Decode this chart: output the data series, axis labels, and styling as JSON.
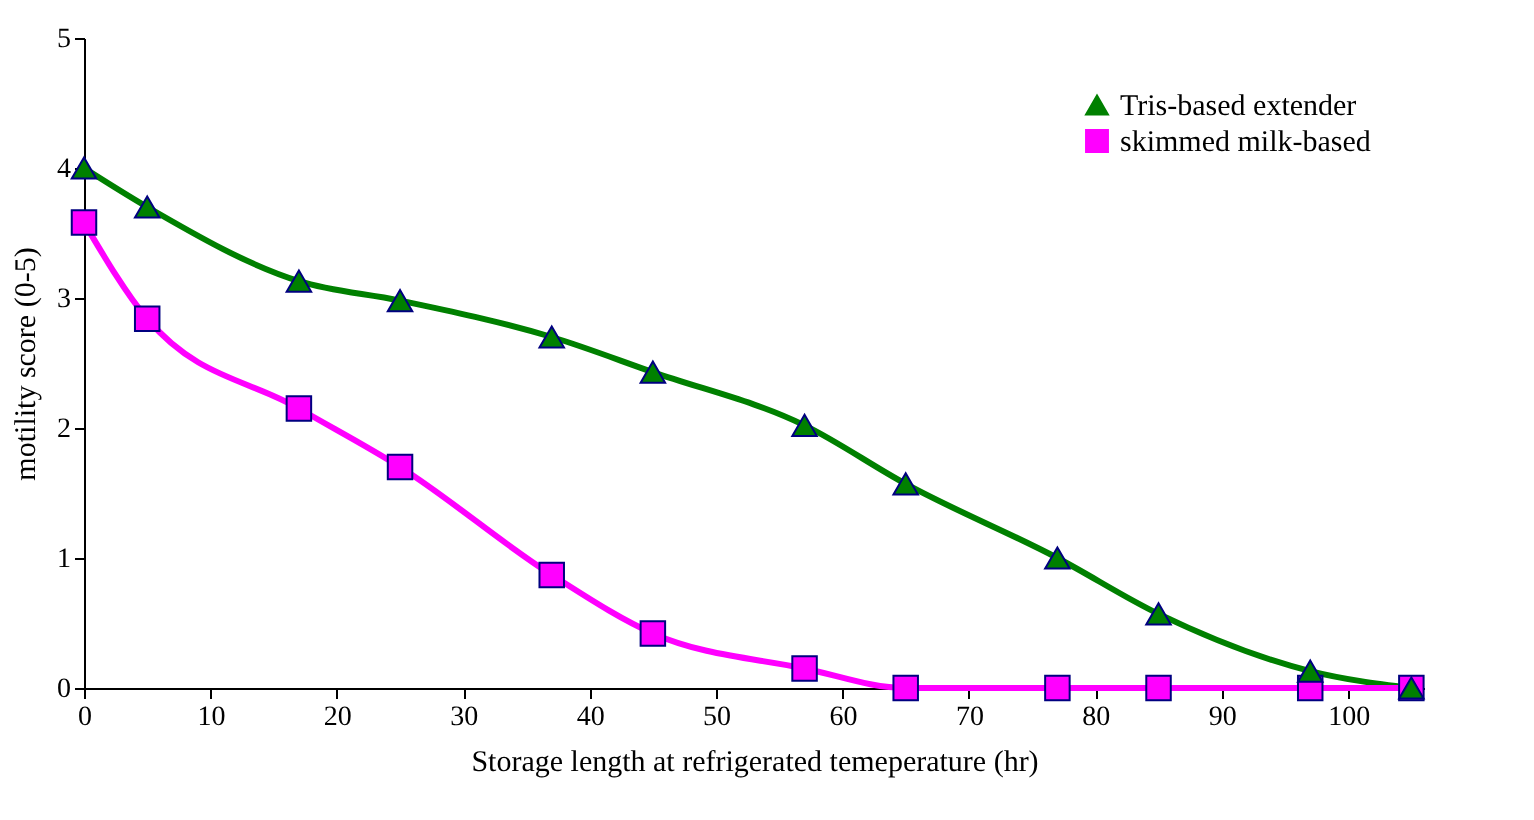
{
  "chart_data": {
    "type": "line",
    "xlabel": "Storage length  at refrigerated temeperature (hr)",
    "ylabel": "motility score (0-5)",
    "x": [
      0,
      5,
      17,
      25,
      37,
      45,
      57,
      65,
      77,
      85,
      97,
      105
    ],
    "series": [
      {
        "name": "Tris-based extender",
        "color": "#008000",
        "marker": "triangle",
        "values": [
          4.0,
          3.7,
          3.13,
          2.98,
          2.7,
          2.43,
          2.02,
          1.57,
          1.0,
          0.57,
          0.13,
          0
        ]
      },
      {
        "name": "skimmed milk-based",
        "color": "#ff00ff",
        "marker": "square",
        "values": [
          3.58,
          2.84,
          2.15,
          1.7,
          0.87,
          0.42,
          0.15,
          0,
          0,
          0,
          0,
          0
        ]
      }
    ],
    "xlim": [
      0,
      106
    ],
    "xticks": [
      0,
      10,
      20,
      30,
      40,
      50,
      60,
      70,
      80,
      90,
      100
    ],
    "ylim": [
      0,
      5
    ],
    "yticks": [
      0,
      1,
      2,
      3,
      4,
      5
    ],
    "grid": false,
    "legend": "top right",
    "line_style": "solid"
  }
}
